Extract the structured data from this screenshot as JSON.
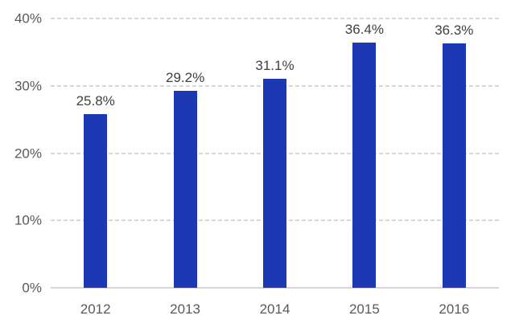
{
  "chart_data": {
    "type": "bar",
    "title": "",
    "xlabel": "",
    "ylabel": "",
    "categories": [
      "2012",
      "2013",
      "2014",
      "2015",
      "2016"
    ],
    "values": [
      25.8,
      29.2,
      31.1,
      36.4,
      36.3
    ],
    "value_labels": [
      "25.8%",
      "29.2%",
      "31.1%",
      "36.4%",
      "36.3%"
    ],
    "y_ticks": [
      0,
      10,
      20,
      30,
      40
    ],
    "y_tick_labels": [
      "0%",
      "10%",
      "20%",
      "30%",
      "40%"
    ],
    "ylim": [
      0,
      40
    ],
    "grid": "horizontal-dashed",
    "legend": "none",
    "colors": {
      "bar": "#1c39b3",
      "gridline": "#d9d9d9",
      "axis_line": "#d6d6d6",
      "axis_label": "#595959",
      "value_label": "#404040",
      "background": "#ffffff"
    }
  }
}
